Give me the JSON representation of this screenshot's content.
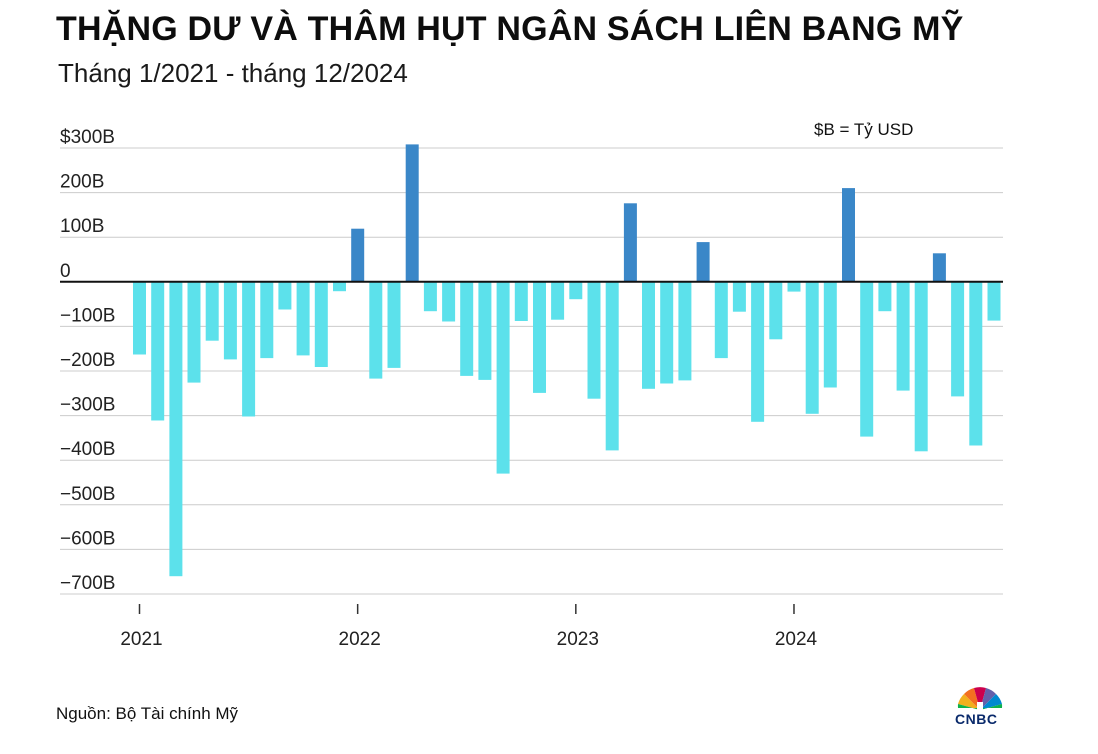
{
  "header": {
    "title": "THẶNG DƯ VÀ THÂM HỤT NGÂN SÁCH LIÊN BANG MỸ",
    "subtitle": "Tháng 1/2021 - tháng 12/2024",
    "unit_note": "$B = Tỷ USD"
  },
  "footer": {
    "source": "Nguồn: Bộ Tài chính Mỹ",
    "logo_text": "CNBC"
  },
  "colors": {
    "surplus": "#3a87c8",
    "deficit": "#5ce1eb",
    "gridline": "#cccccc",
    "zero_line": "#111111"
  },
  "chart_data": {
    "type": "bar",
    "title": "THẶNG DƯ VÀ THÂM HỤT NGÂN SÁCH LIÊN BANG MỸ",
    "subtitle": "Tháng 1/2021 - tháng 12/2024",
    "xlabel": "",
    "ylabel": "",
    "ylim": [
      -700,
      300
    ],
    "yticks": [
      300,
      200,
      100,
      0,
      -100,
      -200,
      -300,
      -400,
      -500,
      -600,
      -700
    ],
    "ytick_labels": [
      "$300B",
      "200B",
      "100B",
      "0",
      "−100B",
      "−200B",
      "−300B",
      "−400B",
      "−500B",
      "−600B",
      "−700B"
    ],
    "year_labels": [
      "2021",
      "2022",
      "2023",
      "2024"
    ],
    "grid": true,
    "categories": [
      "1/2021",
      "2/2021",
      "3/2021",
      "4/2021",
      "5/2021",
      "6/2021",
      "7/2021",
      "8/2021",
      "9/2021",
      "10/2021",
      "11/2021",
      "12/2021",
      "1/2022",
      "2/2022",
      "3/2022",
      "4/2022",
      "5/2022",
      "6/2022",
      "7/2022",
      "8/2022",
      "9/2022",
      "10/2022",
      "11/2022",
      "12/2022",
      "1/2023",
      "2/2023",
      "3/2023",
      "4/2023",
      "5/2023",
      "6/2023",
      "7/2023",
      "8/2023",
      "9/2023",
      "10/2023",
      "11/2023",
      "12/2023",
      "1/2024",
      "2/2024",
      "3/2024",
      "4/2024",
      "5/2024",
      "6/2024",
      "7/2024",
      "8/2024",
      "9/2024",
      "10/2024",
      "11/2024",
      "12/2024"
    ],
    "values": [
      -163,
      -311,
      -660,
      -226,
      -132,
      -174,
      -302,
      -171,
      -62,
      -165,
      -191,
      -21,
      119,
      -217,
      -193,
      308,
      -66,
      -89,
      -211,
      -220,
      -430,
      -88,
      -249,
      -85,
      -39,
      -262,
      -378,
      176,
      -240,
      -228,
      -221,
      89,
      -171,
      -67,
      -314,
      -129,
      -22,
      -296,
      -237,
      210,
      -347,
      -66,
      -244,
      -380,
      64,
      -257,
      -367,
      -87
    ]
  }
}
